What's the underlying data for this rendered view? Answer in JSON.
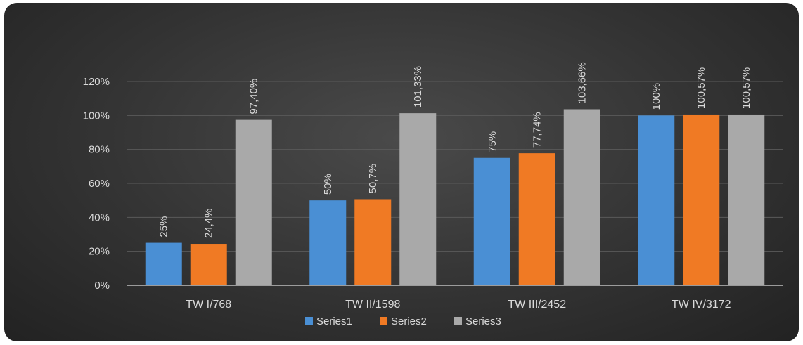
{
  "chart_data": {
    "type": "bar",
    "categories": [
      "TW I/768",
      "TW II/1598",
      "TW III/2452",
      "TW IV/3172"
    ],
    "series": [
      {
        "name": "Series1",
        "color": "#4a8fd4",
        "values": [
          25,
          50,
          75,
          100
        ],
        "labels": [
          "25%",
          "50%",
          "75%",
          "100%"
        ]
      },
      {
        "name": "Series2",
        "color": "#f07a24",
        "values": [
          24.4,
          50.7,
          77.74,
          100.57
        ],
        "labels": [
          "24,4%",
          "50,7%",
          "77,74%",
          "100,57%"
        ]
      },
      {
        "name": "Series3",
        "color": "#a9a9a9",
        "values": [
          97.4,
          101.33,
          103.66,
          100.57
        ],
        "labels": [
          "97,40%",
          "101,33%",
          "103,66%",
          "100,57%"
        ]
      }
    ],
    "yticks": [
      "0%",
      "20%",
      "40%",
      "60%",
      "80%",
      "100%",
      "120%"
    ],
    "ylim": [
      0,
      120
    ],
    "legend": "bottom",
    "grid": true
  }
}
